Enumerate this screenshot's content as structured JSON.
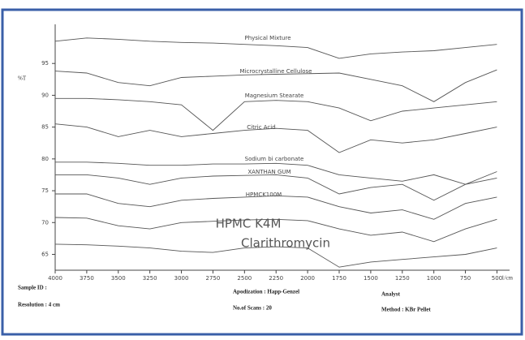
{
  "chart_data": {
    "type": "line",
    "ylabel": "%T",
    "xlabel": "1/cm",
    "x": [
      4000,
      3750,
      3500,
      3250,
      3000,
      2750,
      2500,
      2250,
      2000,
      1750,
      1500,
      1250,
      1000,
      750,
      500
    ],
    "xlim": [
      4000,
      400
    ],
    "xticks": [
      4000,
      3750,
      3500,
      3250,
      3000,
      2750,
      2500,
      2250,
      2000,
      1750,
      1500,
      1250,
      1000,
      750,
      500
    ],
    "ylim": [
      62,
      100
    ],
    "yticks": [
      95,
      90,
      85,
      80,
      75,
      70,
      65
    ],
    "grid": false,
    "series": [
      {
        "name": "Physical Mixture",
        "color": "#555",
        "values": [
          98.5,
          99,
          98.8,
          98.5,
          98.3,
          98.2,
          98,
          97.8,
          97.5,
          95.8,
          96.5,
          96.8,
          97,
          97.5,
          98
        ]
      },
      {
        "name": "Microcrystalline Cellulose",
        "color": "#555",
        "values": [
          93.8,
          93.5,
          92,
          91.5,
          92.8,
          93,
          93.2,
          93.3,
          93.4,
          93.5,
          92.5,
          91.5,
          89,
          92,
          94
        ]
      },
      {
        "name": "Magnesium Stearate",
        "color": "#555",
        "values": [
          89.5,
          89.5,
          89.3,
          89,
          88.5,
          84.5,
          89,
          89.2,
          89,
          88,
          86,
          87.5,
          88,
          88.5,
          89
        ]
      },
      {
        "name": "Citric Acid",
        "color": "#555",
        "values": [
          85.5,
          85,
          83.5,
          84.5,
          83.5,
          84,
          84.5,
          84.8,
          84.5,
          81,
          83,
          82.5,
          83,
          84,
          85
        ]
      },
      {
        "name": "Sodium bi carbonate",
        "color": "#555",
        "values": [
          79.5,
          79.5,
          79.3,
          79,
          79,
          79.2,
          79.2,
          79.3,
          79,
          77.5,
          77,
          76.5,
          77.5,
          76,
          78
        ]
      },
      {
        "name": "XANTHAN GUM",
        "color": "#555",
        "values": [
          77.5,
          77.5,
          77,
          76,
          77,
          77.3,
          77.4,
          77.5,
          77,
          74.5,
          75.5,
          76,
          73.5,
          76,
          77
        ]
      },
      {
        "name": "HPMCK100M",
        "color": "#555",
        "values": [
          74.5,
          74.5,
          73,
          72.5,
          73.5,
          73.8,
          74,
          74.2,
          74,
          72.5,
          71.5,
          72,
          70.5,
          73,
          74
        ]
      },
      {
        "name": "HPMC K4M",
        "color": "#555",
        "values": [
          70.8,
          70.7,
          69.5,
          69,
          70,
          70.2,
          70.4,
          70.5,
          70.3,
          69,
          68,
          68.5,
          67,
          69,
          70.5
        ]
      },
      {
        "name": "Clarithromycin",
        "color": "#555",
        "values": [
          66.6,
          66.5,
          66.3,
          66,
          65.5,
          65.3,
          66,
          66.2,
          66,
          63,
          63.8,
          64.2,
          64.6,
          65,
          66
        ]
      }
    ]
  },
  "footer": {
    "sample_id": "Sample ID :",
    "resolution": "Resolution : 4 cm",
    "apodization": "Apodization : Happ-Genzel",
    "scans": "No.of Scans : 20",
    "analyst": "Analyst",
    "method": "Method : KBr Pellet"
  }
}
